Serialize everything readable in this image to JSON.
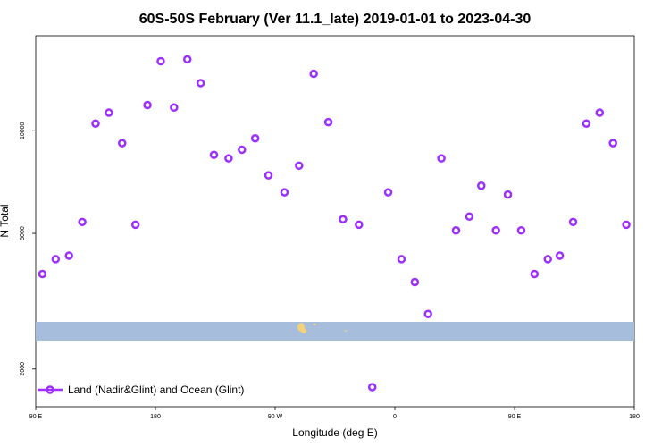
{
  "chart_data": {
    "type": "scatter",
    "title": "60S-50S February (Ver 11.1_late)   2019-01-01 to 2023-04-30",
    "xlabel": "Longitude (deg E)",
    "ylabel": "N Total",
    "x_ticks": [
      {
        "value": 90,
        "label": "90 E"
      },
      {
        "value": 180,
        "label": "180"
      },
      {
        "value": 270,
        "label": "90 W"
      },
      {
        "value": 360,
        "label": "0"
      },
      {
        "value": 450,
        "label": "90 E"
      },
      {
        "value": 540,
        "label": "180"
      }
    ],
    "y_ticks": [
      {
        "value": 2000,
        "label": "2000"
      },
      {
        "value": 5000,
        "label": "5000"
      },
      {
        "value": 10000,
        "label": "10000"
      }
    ],
    "xlim": [
      90,
      540
    ],
    "ylim": [
      1550,
      19000
    ],
    "y_scale": "log",
    "grid": false,
    "legend": {
      "position": "bottom-left",
      "label": "Land (Nadir&Glint) and Ocean (Glint)",
      "color": "#9b30ff"
    },
    "map_strip": {
      "lat_range": "60S-50S",
      "ocean_color": "#a7bddc",
      "land_color": "#f3d27a"
    },
    "series": [
      {
        "name": "Land (Nadir&Glint) and Ocean (Glint)",
        "color": "#9b30ff",
        "x": [
          95,
          105,
          115,
          125,
          135,
          145,
          155,
          165,
          174,
          184,
          194,
          204,
          214,
          224,
          235,
          245,
          255,
          265,
          277,
          288,
          299,
          310,
          321,
          333,
          343,
          355,
          365,
          375,
          385,
          395,
          406,
          416,
          425,
          436,
          445,
          455,
          465,
          475,
          484,
          494,
          504,
          514,
          524,
          534
        ],
        "y": [
          3800,
          4200,
          4300,
          5400,
          10500,
          11300,
          9200,
          5300,
          11900,
          16000,
          11700,
          16200,
          13800,
          8500,
          8300,
          8800,
          9500,
          7400,
          6600,
          7900,
          14700,
          10600,
          5500,
          5300,
          1770,
          6600,
          4200,
          3600,
          2900,
          8300,
          5100,
          5600,
          6900,
          5100,
          6500,
          5100,
          3800,
          4200,
          4300,
          5400,
          10500,
          11300,
          9200,
          5300
        ]
      }
    ]
  }
}
